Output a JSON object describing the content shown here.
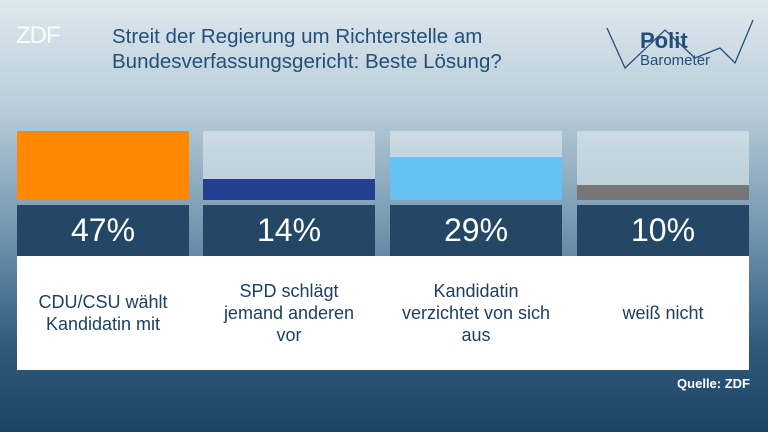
{
  "chart_data": {
    "type": "bar",
    "title": "Streit der Regierung um Richterstelle am Bundesverfassungsgericht: Beste Lösung?",
    "logo": "ZDF",
    "brand": [
      "Polit",
      "Barometer"
    ],
    "categories": [
      "CDU/CSU wählt Kandidatin mit",
      "SPD schlägt jemand anderen vor",
      "Kandidatin verzichtet von sich aus",
      "weiß nicht"
    ],
    "values": [
      47,
      14,
      29,
      10
    ],
    "value_labels": [
      "47%",
      "14%",
      "29%",
      "10%"
    ],
    "colors": [
      "#ff8800",
      "#233f8f",
      "#66c2f4",
      "#767676"
    ],
    "source": "Quelle: ZDF"
  }
}
